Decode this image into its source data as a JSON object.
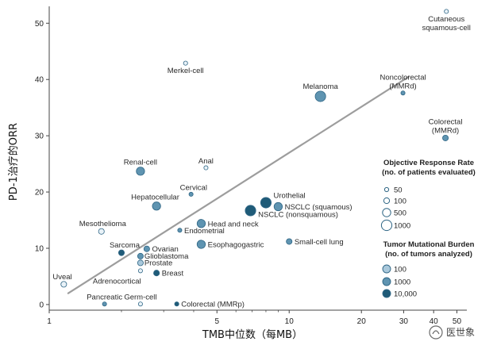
{
  "chart_data": {
    "type": "scatter",
    "xscale": "log",
    "xlim": [
      1,
      55
    ],
    "ylim": [
      -1,
      53
    ],
    "xlabel": "TMB中位数（每MB）",
    "ylabel": "PD-1治疗的ORR",
    "x_ticks": [
      1,
      5,
      10,
      20,
      30,
      40,
      50
    ],
    "y_ticks": [
      0,
      10,
      20,
      30,
      40,
      50
    ],
    "colors": {
      "sparse": "#e9f2f8",
      "light": "#a9c8db",
      "mid": "#5f94b1",
      "dark": "#1f5b78",
      "ring": "#2f6685",
      "trend": "#9d9d9d",
      "axis": "#444444"
    },
    "trend_line": {
      "x": [
        1.2,
        31.5
      ],
      "y": [
        2,
        40.5
      ]
    },
    "points": [
      {
        "label": "Cutaneous squamous-cell",
        "x": 45.2,
        "y": 52.1,
        "orr_n": "50",
        "tmb_n": "sparse",
        "label_pos": "below"
      },
      {
        "label": "Merkel-cell",
        "x": 3.7,
        "y": 42.9,
        "orr_n": "50",
        "tmb_n": "sparse",
        "label_pos": "below"
      },
      {
        "label": "Melanoma",
        "x": 13.5,
        "y": 37.0,
        "orr_n": "1000",
        "tmb_n": "mid",
        "label_pos": "above"
      },
      {
        "label": "Noncolorectal (MMRd)",
        "x": 29.8,
        "y": 37.6,
        "orr_n": "50",
        "tmb_n": "mid",
        "label_pos": "above"
      },
      {
        "label": "Colorectal (MMRd)",
        "x": 44.8,
        "y": 29.6,
        "orr_n": "100",
        "tmb_n": "mid",
        "label_pos": "above"
      },
      {
        "label": "Renal-cell",
        "x": 2.4,
        "y": 23.7,
        "orr_n": "500",
        "tmb_n": "mid",
        "label_pos": "above"
      },
      {
        "label": "Anal",
        "x": 4.5,
        "y": 24.3,
        "orr_n": "50",
        "tmb_n": "sparse",
        "label_pos": "above"
      },
      {
        "label": "Cervical",
        "x": 3.9,
        "y": 19.6,
        "orr_n": "50",
        "tmb_n": "mid",
        "label_pos": "above"
      },
      {
        "label": "Hepatocellular",
        "x": 2.8,
        "y": 17.5,
        "orr_n": "500",
        "tmb_n": "mid",
        "label_pos": "above"
      },
      {
        "label": "Urothelial",
        "x": 8.0,
        "y": 18.1,
        "orr_n": "1000",
        "tmb_n": "dark",
        "label_pos": "right"
      },
      {
        "label": "NSCLC (squamous)",
        "x": 9.0,
        "y": 17.4,
        "orr_n": "500",
        "tmb_n": "mid",
        "label_pos": "right"
      },
      {
        "label": "NSCLC (nonsquamous)",
        "x": 6.9,
        "y": 16.7,
        "orr_n": "1000",
        "tmb_n": "dark",
        "label_pos": "right"
      },
      {
        "label": "Head and neck",
        "x": 4.3,
        "y": 14.4,
        "orr_n": "500",
        "tmb_n": "mid",
        "label_pos": "right"
      },
      {
        "label": "Mesothelioma",
        "x": 1.65,
        "y": 13.0,
        "orr_n": "100",
        "tmb_n": "sparse",
        "label_pos": "above"
      },
      {
        "label": "Endometrial",
        "x": 3.5,
        "y": 13.2,
        "orr_n": "50",
        "tmb_n": "mid",
        "label_pos": "right"
      },
      {
        "label": "Esophagogastric",
        "x": 4.3,
        "y": 10.7,
        "orr_n": "500",
        "tmb_n": "mid",
        "label_pos": "right"
      },
      {
        "label": "Small-cell lung",
        "x": 10.0,
        "y": 11.2,
        "orr_n": "100",
        "tmb_n": "mid",
        "label_pos": "right"
      },
      {
        "label": "Sarcoma",
        "x": 2.0,
        "y": 9.2,
        "orr_n": "100",
        "tmb_n": "dark",
        "label_pos": "above"
      },
      {
        "label": "Ovarian",
        "x": 2.55,
        "y": 9.9,
        "orr_n": "100",
        "tmb_n": "mid",
        "label_pos": "right"
      },
      {
        "label": "Glioblastoma",
        "x": 2.4,
        "y": 8.6,
        "orr_n": "100",
        "tmb_n": "mid",
        "label_pos": "right"
      },
      {
        "label": "Prostate",
        "x": 2.4,
        "y": 7.4,
        "orr_n": "100",
        "tmb_n": "light",
        "label_pos": "right"
      },
      {
        "label": "Adrenocortical",
        "x": 2.4,
        "y": 6.0,
        "orr_n": "50",
        "tmb_n": "sparse",
        "label_pos": "below-left"
      },
      {
        "label": "Breast",
        "x": 2.8,
        "y": 5.6,
        "orr_n": "100",
        "tmb_n": "dark",
        "label_pos": "right"
      },
      {
        "label": "Uveal",
        "x": 1.15,
        "y": 3.6,
        "orr_n": "100",
        "tmb_n": "sparse",
        "label_pos": "above"
      },
      {
        "label": "Pancreatic",
        "x": 1.7,
        "y": 0.1,
        "orr_n": "50",
        "tmb_n": "mid",
        "label_pos": "above"
      },
      {
        "label": "Germ-cell",
        "x": 2.4,
        "y": 0.1,
        "orr_n": "50",
        "tmb_n": "sparse",
        "label_pos": "above"
      },
      {
        "label": "Colorectal (MMRp)",
        "x": 3.4,
        "y": 0.1,
        "orr_n": "50",
        "tmb_n": "dark",
        "label_pos": "right"
      }
    ],
    "legend_orr": {
      "title_line1": "Objective Response Rate",
      "title_line2": "(no. of patients evaluated)",
      "items": [
        "50",
        "100",
        "500",
        "1000"
      ]
    },
    "legend_tmb": {
      "title_line1": "Tumor Mutational Burden",
      "title_line2": "(no. of tumors analyzed)",
      "items": [
        "100",
        "1000",
        "10,000"
      ]
    }
  },
  "watermark": "医世象"
}
